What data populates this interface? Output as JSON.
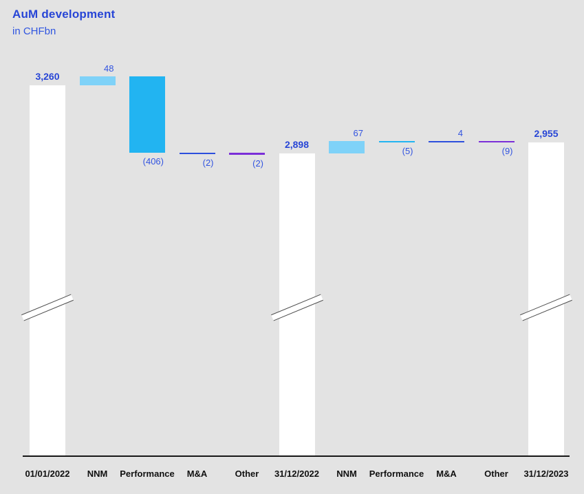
{
  "title": "AuM development",
  "subtitle": "in CHFbn",
  "colors": {
    "background": "#e3e3e3",
    "title_blue": "#2745d6",
    "subtitle_blue": "#2f55e0",
    "delta_label_blue": "#3254e0",
    "total_bar_white": "#ffffff",
    "nnm_blue": "#7fd2f8",
    "performance_blue": "#22b4f1",
    "ma_blue": "#2c4fdd",
    "other_purple": "#7b2ed8",
    "axis_black": "#161616",
    "break_line_gray": "#4c4c4c",
    "x_label_black": "#101010"
  },
  "chart_data": {
    "type": "bar",
    "subtype": "waterfall",
    "title": "AuM development",
    "unit": "in CHFbn",
    "axis_break": true,
    "legend_position": "none",
    "grid": false,
    "categories": [
      "01/01/2022",
      "NNM",
      "Performance",
      "M&A",
      "Other",
      "31/12/2022",
      "NNM",
      "Performance",
      "M&A",
      "Other",
      "31/12/2023"
    ],
    "bars": [
      {
        "category": "01/01/2022",
        "label": "3,260",
        "value": 3260,
        "kind": "total",
        "color_key": "total_bar_white"
      },
      {
        "category": "NNM",
        "label": "48",
        "value": 48,
        "kind": "delta",
        "color_key": "nnm_blue"
      },
      {
        "category": "Performance",
        "label": "(406)",
        "value": -406,
        "kind": "delta",
        "color_key": "performance_blue"
      },
      {
        "category": "M&A",
        "label": "(2)",
        "value": -2,
        "kind": "delta",
        "color_key": "ma_blue"
      },
      {
        "category": "Other",
        "label": "(2)",
        "value": -2,
        "kind": "delta",
        "color_key": "other_purple"
      },
      {
        "category": "31/12/2022",
        "label": "2,898",
        "value": 2898,
        "kind": "total",
        "color_key": "total_bar_white"
      },
      {
        "category": "NNM",
        "label": "67",
        "value": 67,
        "kind": "delta",
        "color_key": "nnm_blue"
      },
      {
        "category": "Performance",
        "label": "(5)",
        "value": -5,
        "kind": "delta",
        "color_key": "performance_blue"
      },
      {
        "category": "M&A",
        "label": "4",
        "value": 4,
        "kind": "delta",
        "color_key": "ma_blue"
      },
      {
        "category": "Other",
        "label": "(9)",
        "value": -9,
        "kind": "delta",
        "color_key": "other_purple"
      },
      {
        "category": "31/12/2023",
        "label": "2,955",
        "value": 2955,
        "kind": "total",
        "color_key": "total_bar_white"
      }
    ]
  }
}
